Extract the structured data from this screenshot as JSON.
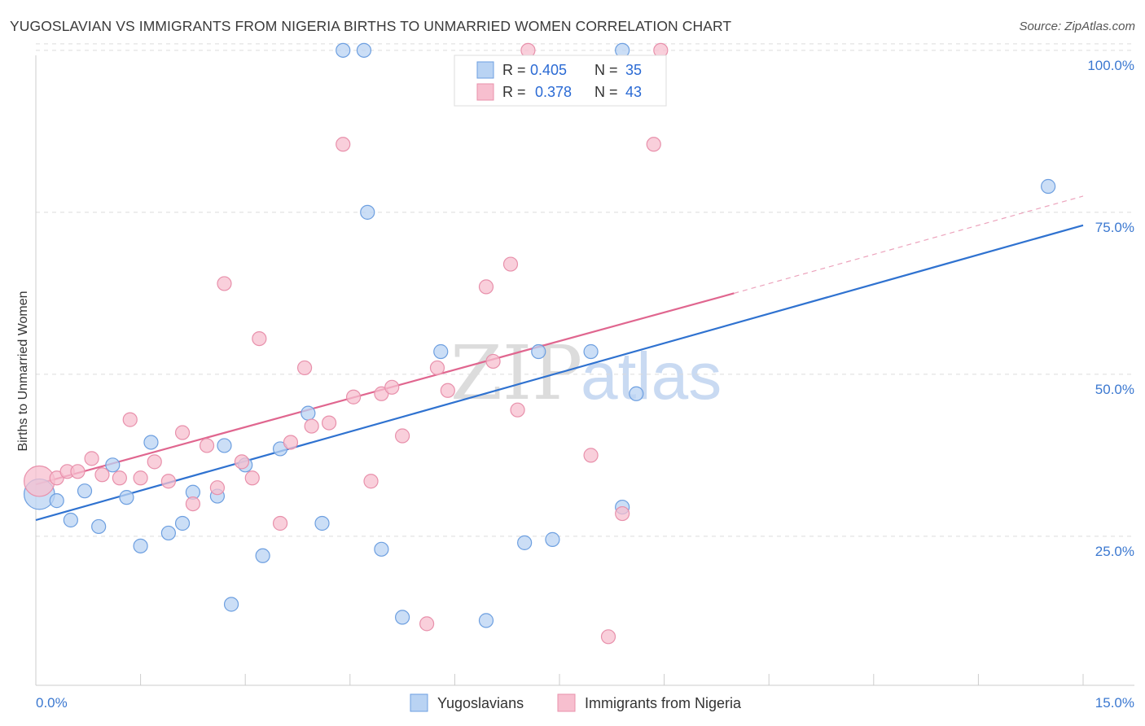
{
  "title": "YUGOSLAVIAN VS IMMIGRANTS FROM NIGERIA BIRTHS TO UNMARRIED WOMEN CORRELATION CHART",
  "source": "Source: ZipAtlas.com",
  "colors": {
    "blue_fill": "#b9d3f3",
    "blue_stroke": "#6d9fe0",
    "blue_line": "#2f72d0",
    "pink_fill": "#f7bfcf",
    "pink_stroke": "#e890ab",
    "pink_line": "#e0668f",
    "tick": "#3b78d0",
    "grid": "#dcdcdc"
  },
  "legend": {
    "r_label": "R =",
    "n_label": "N =",
    "rows": [
      {
        "r": "0.405",
        "n": "35",
        "color": "blue"
      },
      {
        "r": "0.378",
        "n": "43",
        "color": "pink"
      }
    ]
  },
  "watermark": {
    "zip": "ZIP",
    "atlas": "atlas"
  },
  "chart_data": {
    "type": "scatter",
    "title": "YUGOSLAVIAN VS IMMIGRANTS FROM NIGERIA BIRTHS TO UNMARRIED WOMEN CORRELATION CHART",
    "xlabel": "",
    "ylabel": "Births to Unmarried Women",
    "xlim": [
      0,
      15
    ],
    "ylim": [
      2,
      104
    ],
    "x_tick_labels": [
      "0.0%",
      "15.0%"
    ],
    "y_ticks": [
      25,
      50,
      75,
      100
    ],
    "y_tick_labels": [
      "25.0%",
      "50.0%",
      "75.0%",
      "100.0%"
    ],
    "grid": true,
    "legend_position": "bottom",
    "series": [
      {
        "name": "Yugoslavians",
        "color": "blue",
        "trend": {
          "x0": 0,
          "y0": 27.5,
          "x1": 15,
          "y1": 73,
          "dashed_to": null
        },
        "points": [
          [
            0.05,
            31.5,
            2.2
          ],
          [
            0.3,
            30.5,
            1
          ],
          [
            0.5,
            27.5,
            1
          ],
          [
            0.7,
            32,
            1
          ],
          [
            0.9,
            26.5,
            1
          ],
          [
            1.1,
            36,
            1
          ],
          [
            1.3,
            31,
            1
          ],
          [
            1.5,
            23.5,
            1
          ],
          [
            1.65,
            39.5,
            1
          ],
          [
            1.9,
            25.5,
            1
          ],
          [
            2.1,
            27,
            1
          ],
          [
            2.25,
            31.8,
            1
          ],
          [
            2.6,
            31.2,
            1
          ],
          [
            2.7,
            39,
            1
          ],
          [
            3.0,
            36,
            1
          ],
          [
            2.8,
            14.5,
            1
          ],
          [
            3.25,
            22,
            1
          ],
          [
            3.5,
            38.5,
            1
          ],
          [
            3.9,
            44,
            1
          ],
          [
            4.1,
            27,
            1
          ],
          [
            4.4,
            100,
            1
          ],
          [
            4.7,
            100,
            1
          ],
          [
            4.75,
            75,
            1
          ],
          [
            4.95,
            23,
            1
          ],
          [
            5.25,
            12.5,
            1
          ],
          [
            5.8,
            53.5,
            1
          ],
          [
            6.45,
            12,
            1
          ],
          [
            7.0,
            24,
            1
          ],
          [
            7.2,
            53.5,
            1
          ],
          [
            7.4,
            24.5,
            1
          ],
          [
            7.95,
            53.5,
            1
          ],
          [
            8.6,
            47,
            1
          ],
          [
            8.4,
            29.5,
            1
          ],
          [
            8.4,
            100,
            1
          ],
          [
            14.5,
            79,
            1
          ]
        ]
      },
      {
        "name": "Immigrants from Nigeria",
        "color": "pink",
        "trend": {
          "x0": 0,
          "y0": 33,
          "x1": 10,
          "y1": 62.5,
          "dashed_to": {
            "x": 15,
            "y": 77.5
          }
        },
        "points": [
          [
            0.05,
            33.5,
            2.2
          ],
          [
            0.3,
            34,
            1
          ],
          [
            0.45,
            35,
            1
          ],
          [
            0.6,
            35,
            1
          ],
          [
            0.8,
            37,
            1
          ],
          [
            0.95,
            34.5,
            1
          ],
          [
            1.2,
            34,
            1
          ],
          [
            1.35,
            43,
            1
          ],
          [
            1.5,
            34,
            1
          ],
          [
            1.7,
            36.5,
            1
          ],
          [
            1.9,
            33.5,
            1
          ],
          [
            2.1,
            41,
            1
          ],
          [
            2.25,
            30,
            1
          ],
          [
            2.45,
            39,
            1
          ],
          [
            2.6,
            32.5,
            1
          ],
          [
            2.7,
            64,
            1
          ],
          [
            2.95,
            36.5,
            1
          ],
          [
            3.1,
            34,
            1
          ],
          [
            3.2,
            55.5,
            1
          ],
          [
            3.5,
            27,
            1
          ],
          [
            3.65,
            39.5,
            1
          ],
          [
            3.85,
            51,
            1
          ],
          [
            3.95,
            42,
            1
          ],
          [
            4.2,
            42.5,
            1
          ],
          [
            4.4,
            85.5,
            1
          ],
          [
            4.55,
            46.5,
            1
          ],
          [
            4.8,
            33.5,
            1
          ],
          [
            4.95,
            47,
            1
          ],
          [
            5.1,
            48,
            1
          ],
          [
            5.25,
            40.5,
            1
          ],
          [
            5.75,
            51,
            1
          ],
          [
            5.9,
            47.5,
            1
          ],
          [
            5.6,
            11.5,
            1
          ],
          [
            6.45,
            63.5,
            1
          ],
          [
            6.8,
            67,
            1
          ],
          [
            6.55,
            52,
            1
          ],
          [
            6.9,
            44.5,
            1
          ],
          [
            7.05,
            100,
            1
          ],
          [
            7.95,
            37.5,
            1
          ],
          [
            8.2,
            9.5,
            1
          ],
          [
            8.4,
            28.5,
            1
          ],
          [
            8.85,
            85.5,
            1
          ],
          [
            8.95,
            100,
            1
          ]
        ]
      }
    ]
  }
}
